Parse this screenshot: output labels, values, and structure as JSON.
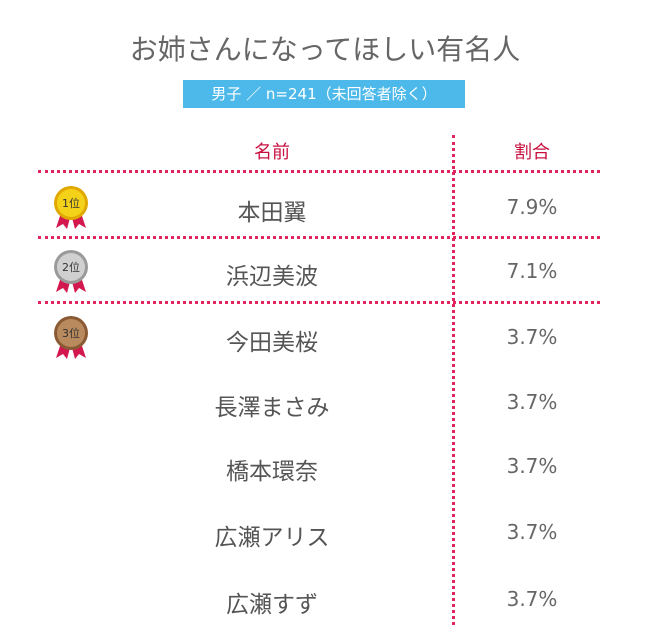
{
  "header": {
    "title": "お姉さんになってほしい有名人",
    "subtitle": "男子 ／ n=241（未回答者除く）"
  },
  "table": {
    "columns": [
      "名前",
      "割合"
    ],
    "rows": [
      {
        "rank": "1位",
        "name": "本田翼",
        "share": "7.9%"
      },
      {
        "rank": "2位",
        "name": "浜辺美波",
        "share": "7.1%"
      },
      {
        "rank": "3位",
        "name": "今田美桜",
        "share": "3.7%"
      },
      {
        "name": "長澤まさみ",
        "share": "3.7%"
      },
      {
        "name": "橋本環奈",
        "share": "3.7%"
      },
      {
        "name": "広瀬アリス",
        "share": "3.7%"
      },
      {
        "name": "広瀬すず",
        "share": "3.7%"
      }
    ]
  }
}
